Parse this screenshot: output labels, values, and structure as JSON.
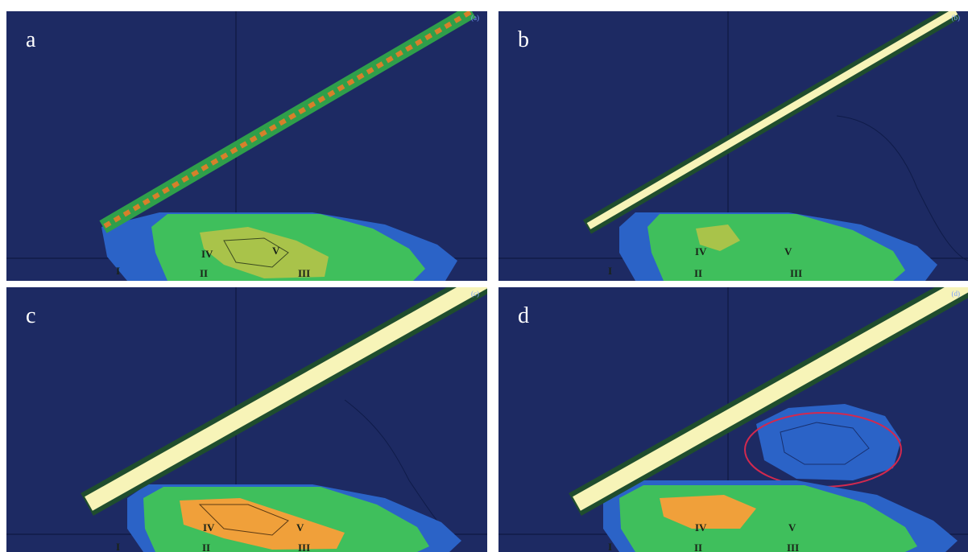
{
  "colors": {
    "background": "#1d2a63",
    "band_core": "#f7f4b8",
    "band_early": "#d6802a",
    "green": "#3fbf5c",
    "blue": "#2b63c7",
    "orange": "#f0a03a",
    "circle": "#d2294f"
  },
  "panels": [
    {
      "label": "a",
      "corner": "(a)",
      "zones": [
        "I",
        "II",
        "III",
        "IV",
        "V"
      ]
    },
    {
      "label": "b",
      "corner": "(b)",
      "zones": [
        "I",
        "II",
        "III",
        "IV",
        "V"
      ]
    },
    {
      "label": "c",
      "corner": "(c)",
      "zones": [
        "I",
        "II",
        "III",
        "IV",
        "V"
      ]
    },
    {
      "label": "d",
      "corner": "(d)",
      "zones": [
        "I",
        "II",
        "III",
        "IV",
        "V"
      ]
    }
  ]
}
